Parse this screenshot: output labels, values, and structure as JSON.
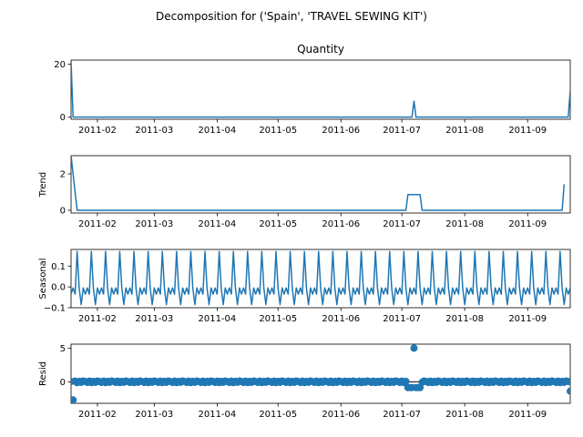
{
  "figure": {
    "suptitle": "Decomposition for ('Spain', 'TRAVEL SEWING KIT')"
  },
  "colors": {
    "series": "#1f77b4",
    "axes": "#000000"
  },
  "chart_data": [
    {
      "id": "observed",
      "type": "line",
      "title": "Quantity",
      "ylabel": "",
      "xlabel": "",
      "x_start": "2011-01-19",
      "x_end": "2011-09-22",
      "ylim": [
        -0.8,
        21.5
      ],
      "yticks": [
        0,
        20
      ],
      "xtick_labels": [
        "2011-02",
        "2011-03",
        "2011-04",
        "2011-05",
        "2011-06",
        "2011-07",
        "2011-08",
        "2011-09"
      ],
      "points": [
        [
          "2011-01-19",
          21
        ],
        [
          "2011-01-20",
          0
        ],
        [
          "2011-07-06",
          0
        ],
        [
          "2011-07-07",
          6
        ],
        [
          "2011-07-08",
          0
        ],
        [
          "2011-09-21",
          0
        ],
        [
          "2011-09-22",
          10
        ]
      ]
    },
    {
      "id": "trend",
      "type": "line",
      "title": "",
      "ylabel": "Trend",
      "xlabel": "",
      "x_start": "2011-01-19",
      "x_end": "2011-09-22",
      "ylim": [
        -0.15,
        3.0
      ],
      "yticks": [
        0,
        2
      ],
      "xtick_labels": [
        "2011-02",
        "2011-03",
        "2011-04",
        "2011-05",
        "2011-06",
        "2011-07",
        "2011-08",
        "2011-09"
      ],
      "points": [
        [
          "2011-01-19",
          3.0
        ],
        [
          "2011-01-22",
          0
        ],
        [
          "2011-07-03",
          0
        ],
        [
          "2011-07-04",
          0.86
        ],
        [
          "2011-07-10",
          0.86
        ],
        [
          "2011-07-11",
          0
        ],
        [
          "2011-09-18",
          0
        ],
        [
          "2011-09-19",
          1.43
        ]
      ]
    },
    {
      "id": "seasonal",
      "type": "line",
      "title": "",
      "ylabel": "Seasonal",
      "xlabel": "",
      "x_start": "2011-01-19",
      "x_end": "2011-09-22",
      "ylim": [
        -0.1,
        0.18
      ],
      "yticks": [
        0.1,
        0.0,
        -0.1
      ],
      "ytick_labels": [
        "0.1",
        "0.0",
        "−0.1"
      ],
      "xtick_labels": [
        "2011-02",
        "2011-03",
        "2011-04",
        "2011-05",
        "2011-06",
        "2011-07",
        "2011-08",
        "2011-09"
      ],
      "period_days": 7,
      "weekly_pattern": [
        -0.035,
        -0.005,
        -0.035,
        0.17,
        -0.005,
        -0.085,
        -0.005
      ]
    },
    {
      "id": "resid",
      "type": "scatter",
      "title": "",
      "ylabel": "Resid",
      "xlabel": "",
      "x_start": "2011-01-19",
      "x_end": "2011-09-22",
      "ylim": [
        -3.2,
        5.6
      ],
      "yticks": [
        0,
        5
      ],
      "xtick_labels": [
        "2011-02",
        "2011-03",
        "2011-04",
        "2011-05",
        "2011-06",
        "2011-07",
        "2011-08",
        "2011-09"
      ],
      "baseline": 0,
      "weekly_pattern": [
        0.04,
        -0.1,
        0.1,
        -0.12,
        0.06,
        -0.08,
        0.12
      ],
      "outliers": [
        [
          "2011-01-20",
          -2.7
        ],
        [
          "2011-07-04",
          -0.86
        ],
        [
          "2011-07-05",
          -0.86
        ],
        [
          "2011-07-06",
          -0.86
        ],
        [
          "2011-07-07",
          5.0
        ],
        [
          "2011-07-08",
          -0.86
        ],
        [
          "2011-07-09",
          -0.86
        ],
        [
          "2011-07-10",
          -0.86
        ],
        [
          "2011-09-22",
          -1.4
        ]
      ]
    }
  ]
}
